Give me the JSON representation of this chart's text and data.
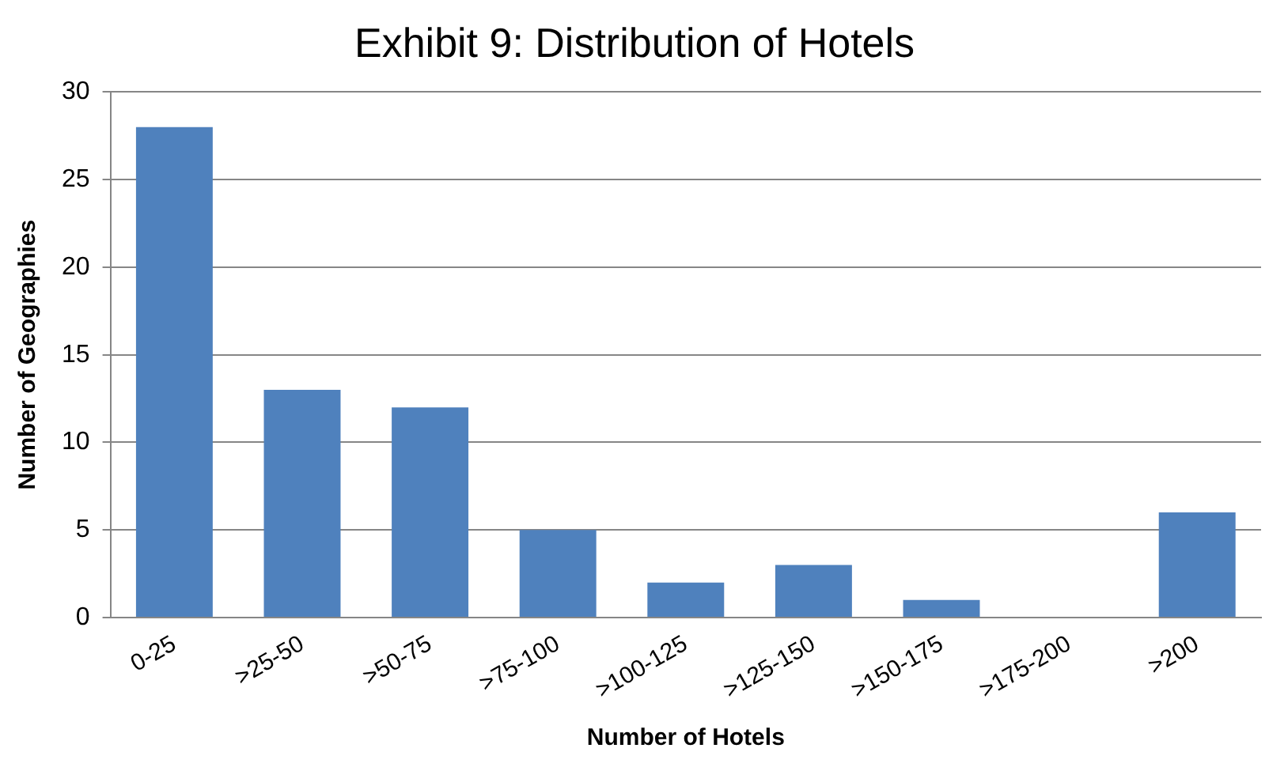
{
  "chart_data": {
    "type": "bar",
    "title": "Exhibit 9: Distribution of Hotels",
    "xlabel": "Number of Hotels",
    "ylabel": "Number of Geographies",
    "categories": [
      "0-25",
      ">25-50",
      ">50-75",
      ">75-100",
      ">100-125",
      ">125-150",
      ">150-175",
      ">175-200",
      ">200"
    ],
    "values": [
      28,
      13,
      12,
      5,
      2,
      3,
      1,
      0,
      6
    ],
    "color": "#4f81bd",
    "ylim": [
      0,
      30
    ],
    "yticks": [
      0,
      5,
      10,
      15,
      20,
      25,
      30
    ],
    "grid": "y"
  }
}
